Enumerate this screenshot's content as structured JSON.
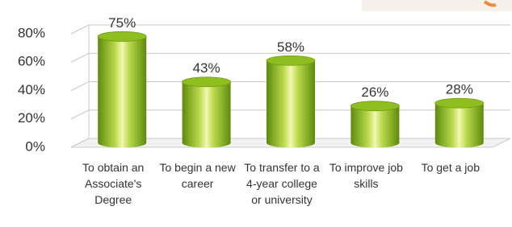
{
  "chart_data": {
    "type": "bar",
    "categories": [
      "To obtain an Associate's Degree",
      "To begin a new career",
      "To transfer to a 4-year college or university",
      "To improve job skills",
      "To get a job"
    ],
    "values": [
      75,
      43,
      58,
      26,
      28
    ],
    "value_labels": [
      "75%",
      "43%",
      "58%",
      "26%",
      "28%"
    ],
    "color": "#8fbf1f",
    "ylim": [
      0,
      80
    ],
    "yticks": [
      {
        "value": 0,
        "label": "0%"
      },
      {
        "value": 20,
        "label": "20%"
      },
      {
        "value": 40,
        "label": "40%"
      },
      {
        "value": 60,
        "label": "60%"
      },
      {
        "value": 80,
        "label": "80%"
      }
    ],
    "grid": true
  }
}
